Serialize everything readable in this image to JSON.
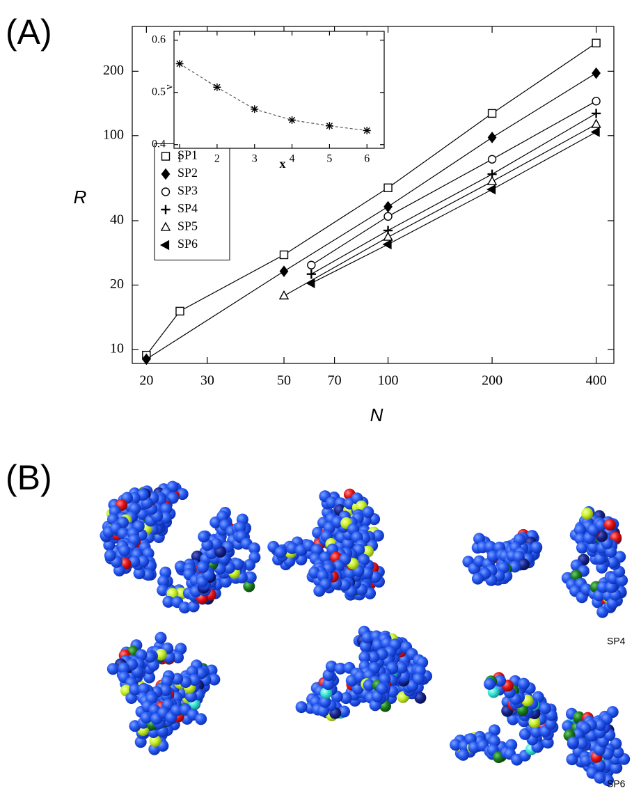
{
  "panel_labels": [
    "(A)",
    "(B)"
  ],
  "image_labels": [
    "SP4",
    "SP6"
  ],
  "chart_data": [
    {
      "type": "line",
      "xscale": "log",
      "yscale": "log",
      "xlabel": "N",
      "ylabel": "R",
      "xlim": [
        18.2,
        450
      ],
      "ylim": [
        8.6,
        324
      ],
      "xticks": [
        20,
        30,
        50,
        70,
        100,
        200,
        400
      ],
      "yticks": [
        10,
        20,
        40,
        100,
        200
      ],
      "legend": "center left",
      "grid": false,
      "series": [
        {
          "name": "SP1",
          "color": "#000000",
          "marker": "square-open",
          "x": [
            20,
            25,
            50,
            100,
            200,
            400
          ],
          "values": [
            9.4,
            15.1,
            27.7,
            57,
            127,
            271
          ]
        },
        {
          "name": "SP2",
          "color": "#000000",
          "marker": "diamond-filled",
          "x": [
            20,
            50,
            100,
            200,
            400
          ],
          "values": [
            9.0,
            23.2,
            46.5,
            98,
            196
          ]
        },
        {
          "name": "SP3",
          "color": "#000000",
          "marker": "circle-open",
          "x": [
            60,
            100,
            200,
            400
          ],
          "values": [
            24.8,
            41.9,
            77.5,
            145
          ]
        },
        {
          "name": "SP4",
          "color": "#000000",
          "marker": "plus",
          "x": [
            60,
            100,
            200,
            400
          ],
          "values": [
            22.5,
            36,
            66,
            127
          ]
        },
        {
          "name": "SP5",
          "color": "#000000",
          "marker": "triangle-up-open",
          "x": [
            50,
            100,
            200,
            400
          ],
          "values": [
            17.8,
            33.5,
            61,
            113
          ]
        },
        {
          "name": "SP6",
          "color": "#000000",
          "marker": "triangle-left-filled",
          "x": [
            60,
            100,
            200,
            400
          ],
          "values": [
            20.4,
            31,
            56,
            104
          ]
        }
      ]
    },
    {
      "type": "line",
      "xlabel": "x",
      "ylabel": "ν",
      "xlim": [
        0.85,
        6.46
      ],
      "ylim": [
        0.393,
        0.617
      ],
      "xticks": [
        1,
        2,
        3,
        4,
        5,
        6
      ],
      "yticks": [
        0.4,
        0.5,
        0.6
      ],
      "marker": "asterisk",
      "linestyle": "dashed",
      "color": "#555555",
      "x": [
        1,
        2,
        3,
        4,
        5,
        6
      ],
      "values": [
        0.555,
        0.51,
        0.468,
        0.447,
        0.436,
        0.427
      ]
    }
  ]
}
